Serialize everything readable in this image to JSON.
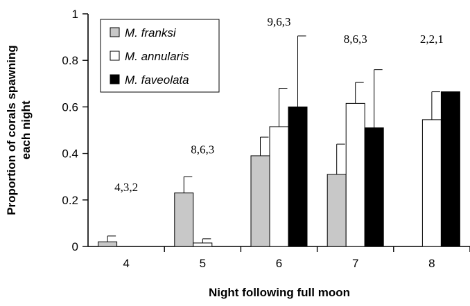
{
  "chart_data": {
    "type": "bar",
    "title": "",
    "xlabel": "Night following full moon",
    "ylabel_lines": [
      "Proportion of corals spawning",
      "each night"
    ],
    "categories": [
      "4",
      "5",
      "6",
      "7",
      "8"
    ],
    "ylim": [
      0,
      1
    ],
    "yticks": [
      "0",
      "0.2",
      "0.4",
      "0.6",
      "0.8",
      "1"
    ],
    "grid": false,
    "legend_position": "top-left",
    "series": [
      {
        "name": "M. franksi",
        "color": "#c8c8c8",
        "values": [
          0.02,
          0.23,
          0.39,
          0.31,
          null
        ],
        "errors": [
          0.025,
          0.07,
          0.08,
          0.13,
          null
        ]
      },
      {
        "name": "M. annularis",
        "color": "#ffffff",
        "values": [
          null,
          0.015,
          0.515,
          0.615,
          0.545
        ],
        "errors": [
          null,
          0.018,
          0.165,
          0.09,
          0.12
        ]
      },
      {
        "name": "M. faveolata",
        "color": "#000000",
        "values": [
          null,
          null,
          0.6,
          0.51,
          0.665
        ],
        "errors": [
          null,
          null,
          0.305,
          0.25,
          null
        ]
      }
    ],
    "annotations": [
      "4,3,2",
      "8,6,3",
      "9,6,3",
      "8,6,3",
      "2,2,1"
    ]
  }
}
